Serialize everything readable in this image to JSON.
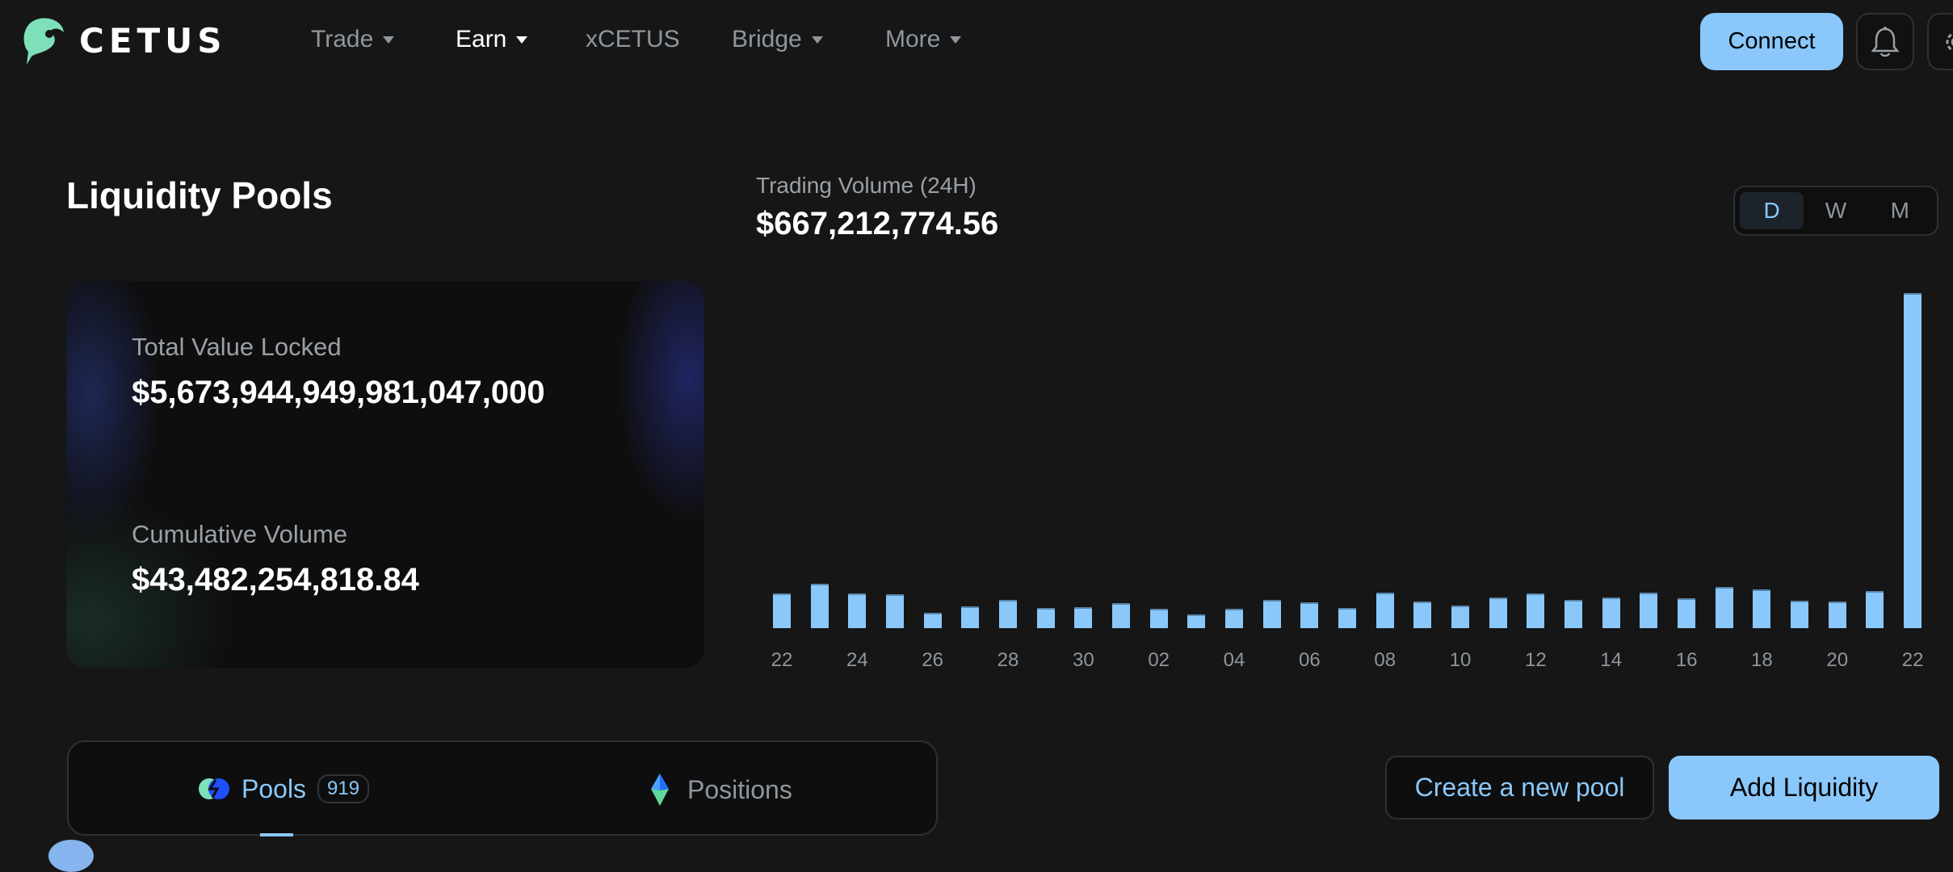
{
  "header": {
    "brand": "CETUS",
    "nav": [
      {
        "label": "Trade",
        "dropdown": true
      },
      {
        "label": "Earn",
        "dropdown": true,
        "active": true
      },
      {
        "label": "xCETUS",
        "dropdown": false
      },
      {
        "label": "Bridge",
        "dropdown": true
      },
      {
        "label": "More",
        "dropdown": true
      }
    ],
    "connect_label": "Connect",
    "icons": [
      "bell-icon",
      "gear-icon"
    ]
  },
  "page": {
    "title": "Liquidity Pools"
  },
  "stats": {
    "tvl_label": "Total Value Locked",
    "tvl_value": "$5,673,944,949,981,047,000",
    "cum_label": "Cumulative Volume",
    "cum_value": "$43,482,254,818.84"
  },
  "volume": {
    "label": "Trading Volume (24H)",
    "value": "$667,212,774.56",
    "periods": [
      "D",
      "W",
      "M"
    ],
    "selected_period": "D"
  },
  "chart_data": {
    "type": "bar",
    "x_tick_labels": [
      "22",
      "24",
      "26",
      "28",
      "30",
      "02",
      "04",
      "06",
      "08",
      "10",
      "12",
      "14",
      "16",
      "18",
      "20",
      "22"
    ],
    "values_musd_estimated": [
      69,
      88,
      69,
      67,
      31,
      43,
      56,
      40,
      42,
      50,
      39,
      27,
      39,
      56,
      51,
      40,
      71,
      53,
      45,
      61,
      69,
      56,
      61,
      71,
      59,
      82,
      77,
      55,
      53,
      74,
      667
    ],
    "color": "#8ac8fb",
    "grid": false
  },
  "tabs": {
    "items": [
      {
        "label": "Pools",
        "count": "919",
        "active": true
      },
      {
        "label": "Positions"
      }
    ]
  },
  "actions": {
    "create_label": "Create a new pool",
    "add_label": "Add Liquidity"
  },
  "colors": {
    "accent": "#8ac8fb",
    "background": "#161616"
  }
}
